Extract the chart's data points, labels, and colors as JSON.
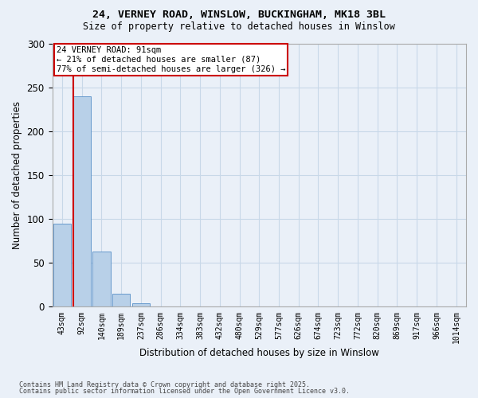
{
  "title1": "24, VERNEY ROAD, WINSLOW, BUCKINGHAM, MK18 3BL",
  "title2": "Size of property relative to detached houses in Winslow",
  "xlabel": "Distribution of detached houses by size in Winslow",
  "ylabel": "Number of detached properties",
  "categories": [
    "43sqm",
    "92sqm",
    "140sqm",
    "189sqm",
    "237sqm",
    "286sqm",
    "334sqm",
    "383sqm",
    "432sqm",
    "480sqm",
    "529sqm",
    "577sqm",
    "626sqm",
    "674sqm",
    "723sqm",
    "772sqm",
    "820sqm",
    "869sqm",
    "917sqm",
    "966sqm",
    "1014sqm"
  ],
  "bar_heights": [
    95,
    240,
    63,
    15,
    4,
    0,
    0,
    0,
    0,
    0,
    0,
    0,
    0,
    0,
    0,
    0,
    0,
    0,
    0,
    0,
    0
  ],
  "bar_color": "#b8d0e8",
  "bar_edge_color": "#6699cc",
  "vline_color": "#cc0000",
  "annotation_text": "24 VERNEY ROAD: 91sqm\n← 21% of detached houses are smaller (87)\n77% of semi-detached houses are larger (326) →",
  "annotation_box_color": "#ffffff",
  "annotation_box_edge": "#cc0000",
  "ylim": [
    0,
    300
  ],
  "yticks": [
    0,
    50,
    100,
    150,
    200,
    250,
    300
  ],
  "grid_color": "#c8d8e8",
  "bg_color": "#eaf0f8",
  "footer1": "Contains HM Land Registry data © Crown copyright and database right 2025.",
  "footer2": "Contains public sector information licensed under the Open Government Licence v3.0."
}
